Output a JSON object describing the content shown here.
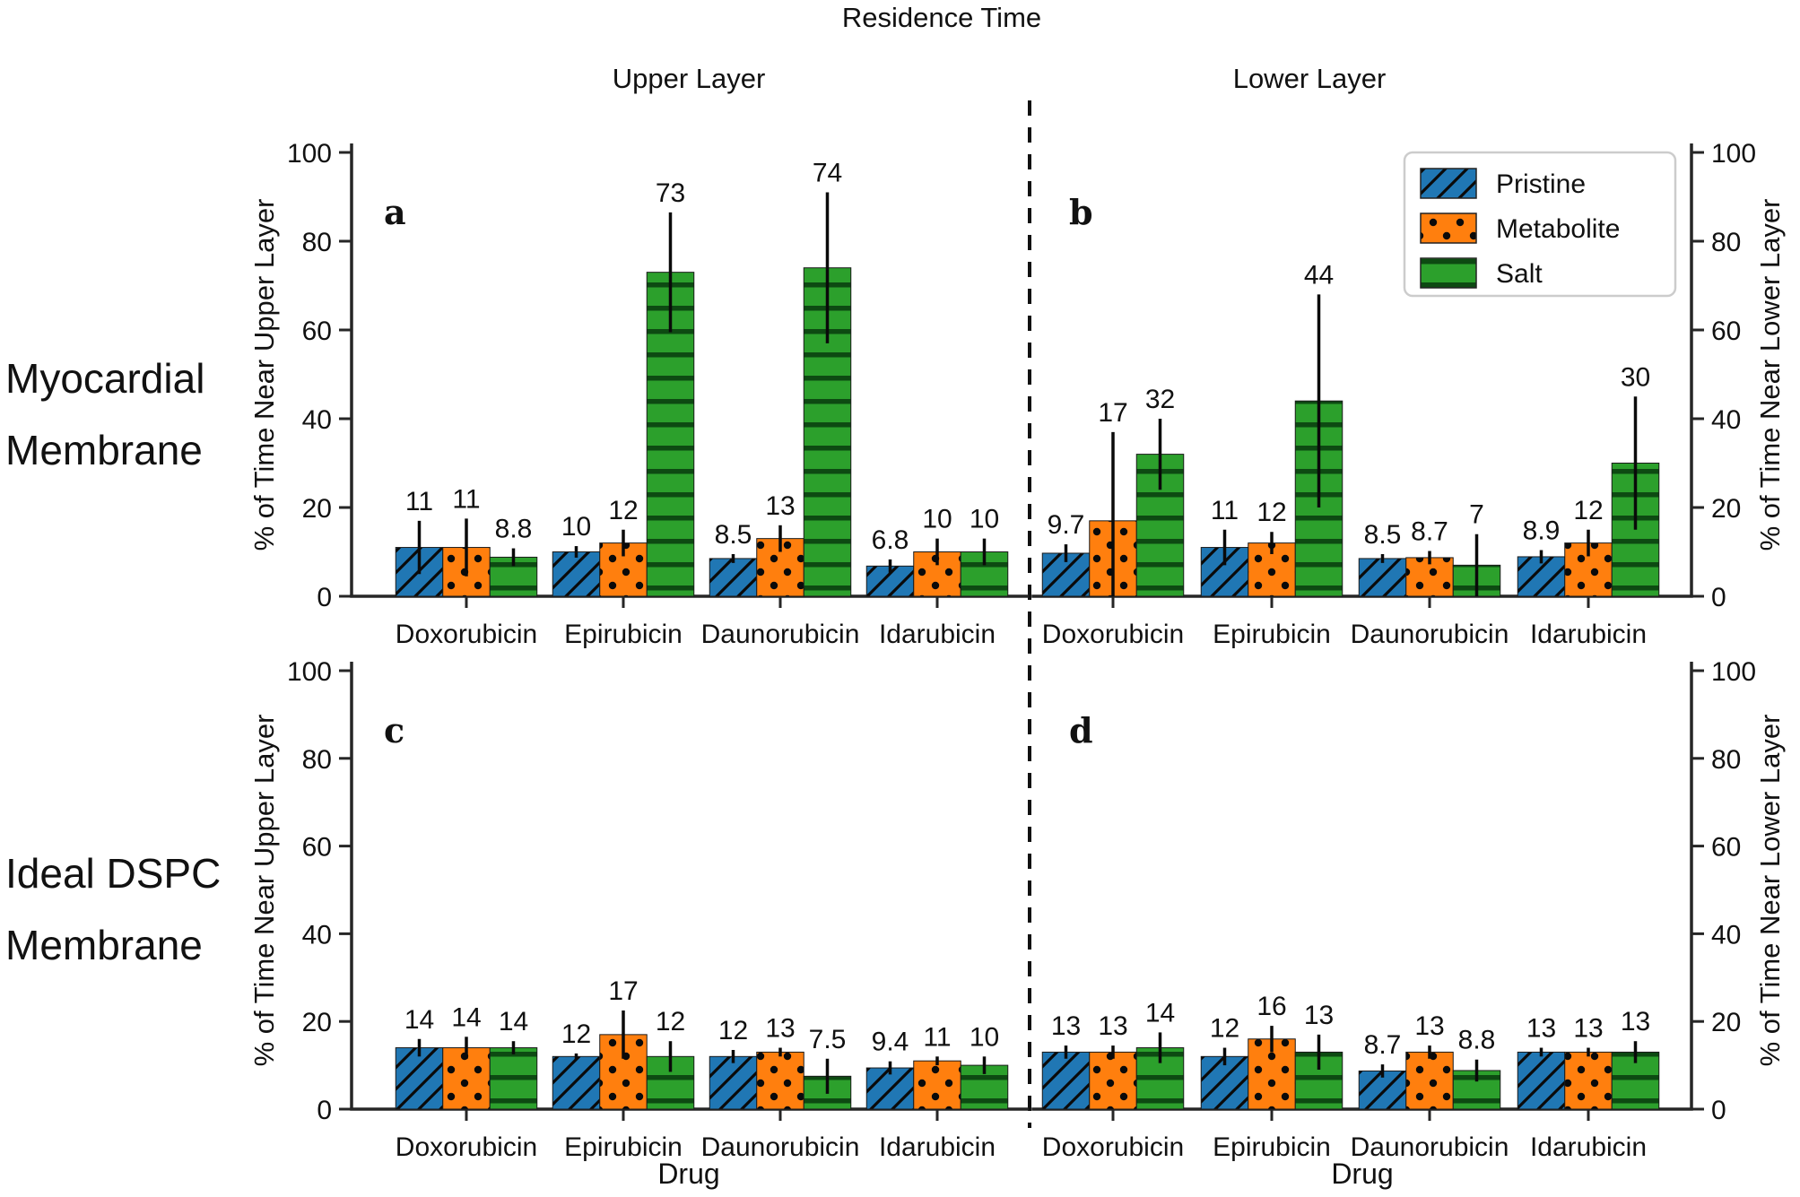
{
  "figure": {
    "title": "Residence Time",
    "columns": [
      {
        "header": "Upper Layer"
      },
      {
        "header": "Lower Layer"
      }
    ],
    "rows": [
      {
        "label_line1": "Myocardial",
        "label_line2": "Membrane"
      },
      {
        "label_line1": "Ideal DSPC",
        "label_line2": "Membrane"
      }
    ],
    "xlabel": "Drug",
    "ylabel_left": "% of Time Near Upper Layer",
    "ylabel_right": "% of Time Near Lower Layer",
    "legend": {
      "position": "upper right of panel b",
      "items": [
        {
          "label": "Pristine",
          "color": "#2077b4",
          "hatch": "diagonal-lines"
        },
        {
          "label": "Metabolite",
          "color": "#ff7f0e",
          "hatch": "dots"
        },
        {
          "label": "Salt",
          "color": "#2ca02c",
          "hatch": "horizontal-lines"
        }
      ]
    },
    "separator": "vertical dashed line between Upper and Lower layer columns"
  },
  "chart_data": [
    {
      "type": "bar",
      "panel_letter": "a",
      "row": "Myocardial Membrane",
      "column": "Upper Layer",
      "ylabel": "% of Time Near Upper Layer",
      "ylabel_side": "left",
      "ylim": [
        0,
        100
      ],
      "yticks": [
        0,
        20,
        40,
        60,
        80,
        100
      ],
      "grid": false,
      "categories": [
        "Doxorubicin",
        "Epirubicin",
        "Daunorubicin",
        "Idarubicin"
      ],
      "series": [
        {
          "name": "Pristine",
          "values": [
            11,
            10,
            8.5,
            6.8
          ],
          "errors": [
            6,
            1.3,
            1,
            1.5
          ]
        },
        {
          "name": "Metabolite",
          "values": [
            11,
            12,
            13,
            10
          ],
          "errors": [
            6.5,
            3,
            3,
            3
          ]
        },
        {
          "name": "Salt",
          "values": [
            8.8,
            73,
            74,
            10
          ],
          "errors": [
            2,
            13.5,
            17,
            3
          ]
        }
      ]
    },
    {
      "type": "bar",
      "panel_letter": "b",
      "row": "Myocardial Membrane",
      "column": "Lower Layer",
      "ylabel": "% of Time Near Lower Layer",
      "ylabel_side": "right",
      "ylim": [
        0,
        100
      ],
      "yticks": [
        0,
        20,
        40,
        60,
        80,
        100
      ],
      "grid": false,
      "categories": [
        "Doxorubicin",
        "Epirubicin",
        "Daunorubicin",
        "Idarubicin"
      ],
      "series": [
        {
          "name": "Pristine",
          "values": [
            9.7,
            11,
            8.5,
            8.9
          ],
          "errors": [
            2,
            4,
            1,
            1.5
          ]
        },
        {
          "name": "Metabolite",
          "values": [
            17,
            12,
            8.7,
            12
          ],
          "errors": [
            20,
            2.5,
            1.5,
            3
          ]
        },
        {
          "name": "Salt",
          "values": [
            32,
            44,
            7,
            30
          ],
          "errors": [
            8,
            24,
            7,
            15
          ]
        }
      ]
    },
    {
      "type": "bar",
      "panel_letter": "c",
      "row": "Ideal DSPC Membrane",
      "column": "Upper Layer",
      "ylabel": "% of Time Near Upper Layer",
      "ylabel_side": "left",
      "ylim": [
        0,
        100
      ],
      "yticks": [
        0,
        20,
        40,
        60,
        80,
        100
      ],
      "grid": false,
      "categories": [
        "Doxorubicin",
        "Epirubicin",
        "Daunorubicin",
        "Idarubicin"
      ],
      "series": [
        {
          "name": "Pristine",
          "values": [
            14,
            12,
            12,
            9.4
          ],
          "errors": [
            2,
            0.7,
            1.5,
            1.5
          ]
        },
        {
          "name": "Metabolite",
          "values": [
            14,
            17,
            13,
            11
          ],
          "errors": [
            2.5,
            5.5,
            1,
            1
          ]
        },
        {
          "name": "Salt",
          "values": [
            14,
            12,
            7.5,
            10
          ],
          "errors": [
            1.5,
            3.5,
            4,
            2
          ]
        }
      ]
    },
    {
      "type": "bar",
      "panel_letter": "d",
      "row": "Ideal DSPC Membrane",
      "column": "Lower Layer",
      "ylabel": "% of Time Near Lower Layer",
      "ylabel_side": "right",
      "ylim": [
        0,
        100
      ],
      "yticks": [
        0,
        20,
        40,
        60,
        80,
        100
      ],
      "grid": false,
      "categories": [
        "Doxorubicin",
        "Epirubicin",
        "Daunorubicin",
        "Idarubicin"
      ],
      "series": [
        {
          "name": "Pristine",
          "values": [
            13,
            12,
            8.7,
            13
          ],
          "errors": [
            1.5,
            2,
            1.5,
            1
          ]
        },
        {
          "name": "Metabolite",
          "values": [
            13,
            16,
            13,
            13
          ],
          "errors": [
            1.5,
            3,
            1.5,
            1
          ]
        },
        {
          "name": "Salt",
          "values": [
            14,
            13,
            8.8,
            13
          ],
          "errors": [
            3.5,
            4,
            2.5,
            2.5
          ]
        }
      ]
    }
  ]
}
